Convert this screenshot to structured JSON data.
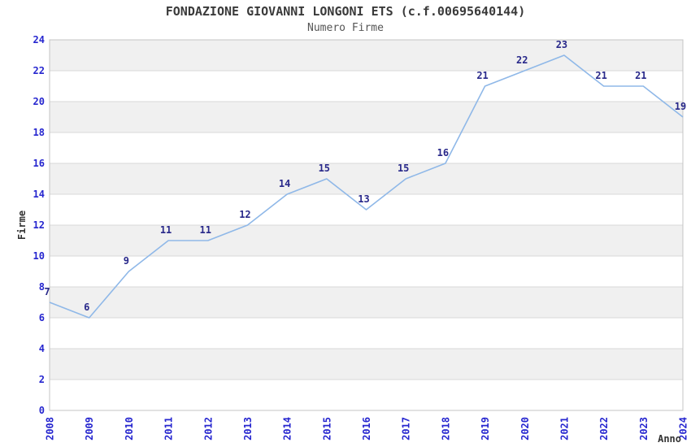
{
  "chart_data": {
    "type": "line",
    "title": "FONDAZIONE GIOVANNI LONGONI ETS (c.f.00695640144)",
    "subtitle": "Numero Firme",
    "xlabel": "Anno",
    "ylabel": "Firme",
    "x": [
      2008,
      2009,
      2010,
      2011,
      2012,
      2013,
      2014,
      2015,
      2016,
      2017,
      2018,
      2019,
      2020,
      2021,
      2022,
      2023,
      2024
    ],
    "values": [
      7,
      6,
      9,
      11,
      11,
      12,
      14,
      15,
      13,
      15,
      16,
      21,
      22,
      23,
      21,
      21,
      19
    ],
    "series": [
      {
        "name": "Numero Firme",
        "values": [
          7,
          6,
          9,
          11,
          11,
          12,
          14,
          15,
          13,
          15,
          16,
          21,
          22,
          23,
          21,
          21,
          19
        ]
      }
    ],
    "ylim": [
      0,
      24
    ],
    "ytick_step": 2,
    "yticks": [
      0,
      2,
      4,
      6,
      8,
      10,
      12,
      14,
      16,
      18,
      20,
      22,
      24
    ],
    "grid": "horizontal-bands",
    "legend_position": "none",
    "point_labels_visible": true,
    "colors": {
      "line": "#8fb8e8",
      "tick_label": "#2626cf",
      "point_label": "#28288a",
      "band_gray": "#f0f0f0",
      "band_white": "#ffffff",
      "grid_line": "#d9d9d9",
      "plot_border": "#c4c4c4",
      "title_text": "#3a3a3a",
      "subtitle_text": "#555555",
      "axis_title_text": "#333333",
      "background": "#ffffff"
    }
  }
}
